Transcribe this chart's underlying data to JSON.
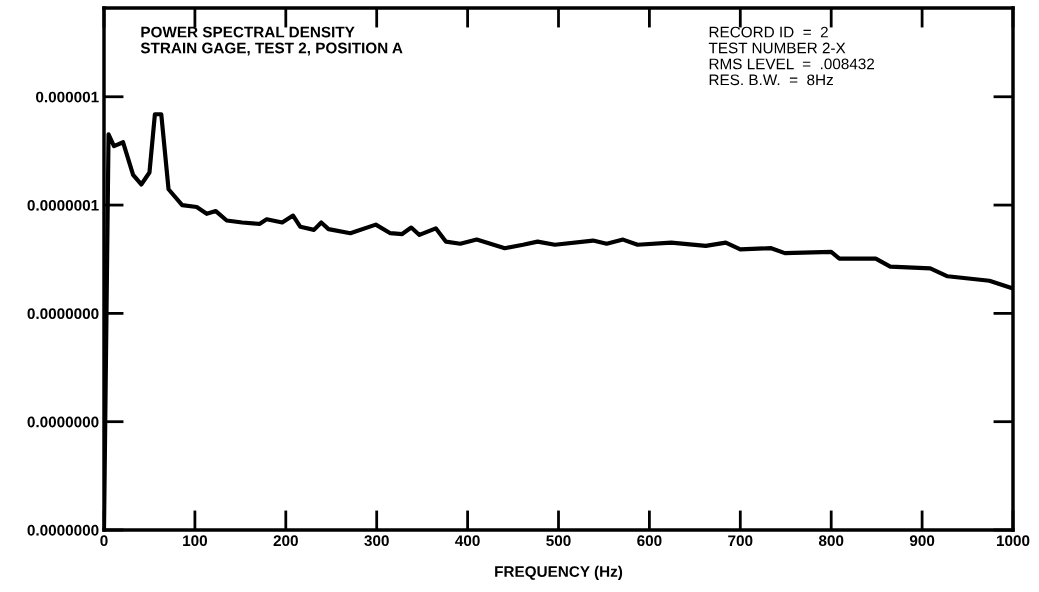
{
  "chart_data": {
    "type": "line",
    "xlabel": "FREQUENCY (Hz)",
    "annotations": [
      "POWER SPECTRAL DENSITY\nSTRAIN GAGE, TEST 2, POSITION A",
      "RECORD ID  =  2\nTEST NUMBER 2-X\nRMS LEVEL  =  .008432\nRES. B.W.  =  8Hz"
    ],
    "x": [
      0,
      5,
      11,
      21,
      32,
      41,
      50,
      56,
      63,
      71,
      86,
      102,
      113,
      123,
      135,
      152,
      171,
      179,
      196,
      208,
      216,
      231,
      239,
      247,
      271,
      299,
      315,
      328,
      338,
      347,
      365,
      376,
      392,
      410,
      441,
      461,
      477,
      496,
      538,
      553,
      571,
      587,
      624,
      662,
      684,
      700,
      734,
      749,
      800,
      809,
      849,
      865,
      909,
      928,
      974,
      1000
    ],
    "series": [
      {
        "color": "#000000",
        "values": [
          1e-10,
          4.5e-07,
          3.5e-07,
          3.8e-07,
          1.9e-07,
          1.55e-07,
          2e-07,
          6.9e-07,
          6.9e-07,
          1.4e-07,
          1e-07,
          9.6e-08,
          8.3e-08,
          8.8e-08,
          7.2e-08,
          6.9e-08,
          6.7e-08,
          7.4e-08,
          6.9e-08,
          8e-08,
          6.3e-08,
          5.9e-08,
          6.9e-08,
          6e-08,
          5.5e-08,
          6.6e-08,
          5.5e-08,
          5.4e-08,
          6.2e-08,
          5.3e-08,
          6.1e-08,
          4.6e-08,
          4.4e-08,
          4.8e-08,
          4e-08,
          4.3e-08,
          4.6e-08,
          4.3e-08,
          4.7e-08,
          4.4e-08,
          4.8e-08,
          4.3e-08,
          4.5e-08,
          4.2e-08,
          4.5e-08,
          3.9e-08,
          4e-08,
          3.6e-08,
          3.7e-08,
          3.2e-08,
          3.2e-08,
          2.7e-08,
          2.6e-08,
          2.2e-08,
          2e-08,
          1.7e-08
        ]
      }
    ],
    "log": "y",
    "xlim": [
      0,
      1000
    ],
    "xticks": [
      0,
      100,
      200,
      300,
      400,
      500,
      600,
      700,
      800,
      900,
      1000
    ],
    "ylim": [
      1e-10,
      6.6e-06
    ],
    "yticks": [
      {
        "value": 1e-10,
        "label": "0.0000000"
      },
      {
        "value": 1e-09,
        "label": "0.0000000"
      },
      {
        "value": 1e-08,
        "label": "0.0000000"
      },
      {
        "value": 1e-07,
        "label": "0.0000001"
      },
      {
        "value": 1e-06,
        "label": "0.000001"
      }
    ],
    "grid": false,
    "marker": "none",
    "line_style": "solid"
  }
}
